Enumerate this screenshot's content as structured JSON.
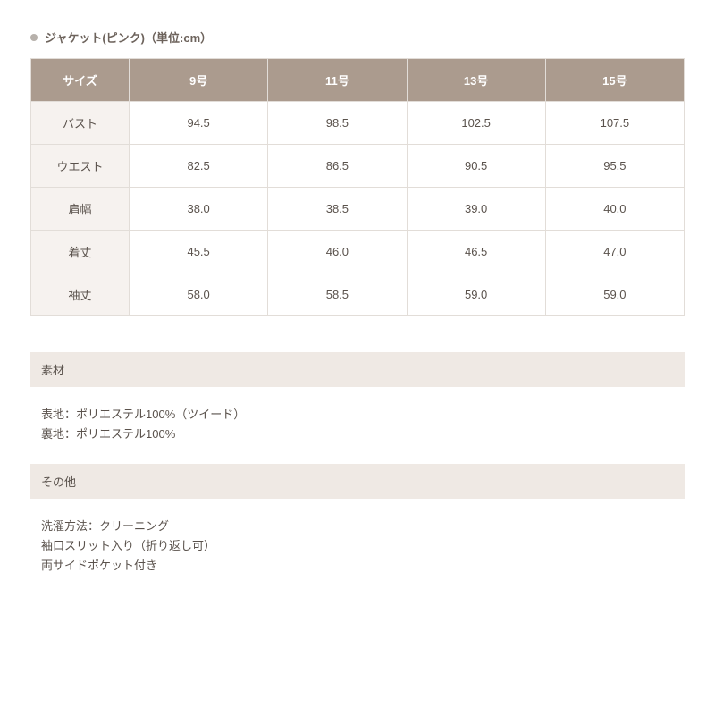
{
  "title": "ジャケット(ピンク)（単位:cm）",
  "table": {
    "header_first": "サイズ",
    "columns": [
      "9号",
      "11号",
      "13号",
      "15号"
    ],
    "rows": [
      {
        "label": "バスト",
        "values": [
          "94.5",
          "98.5",
          "102.5",
          "107.5"
        ]
      },
      {
        "label": "ウエスト",
        "values": [
          "82.5",
          "86.5",
          "90.5",
          "95.5"
        ]
      },
      {
        "label": "肩幅",
        "values": [
          "38.0",
          "38.5",
          "39.0",
          "40.0"
        ]
      },
      {
        "label": "着丈",
        "values": [
          "45.5",
          "46.0",
          "46.5",
          "47.0"
        ]
      },
      {
        "label": "袖丈",
        "values": [
          "58.0",
          "58.5",
          "59.0",
          "59.0"
        ]
      }
    ]
  },
  "sections": [
    {
      "heading": "素材",
      "lines": [
        "表地：ポリエステル100%（ツイード）",
        "裏地：ポリエステル100%"
      ]
    },
    {
      "heading": "その他",
      "lines": [
        "洗濯方法：クリーニング",
        "袖口スリット入り（折り返し可）",
        "両サイドポケット付き"
      ]
    }
  ],
  "colors": {
    "header_bg": "#ab9b8e",
    "header_fg": "#ffffff",
    "row_label_bg": "#f6f2ef",
    "cell_border": "#e2ddd8",
    "section_head_bg": "#efe9e4",
    "bullet": "#b7b1ab",
    "text": "#5a524c"
  }
}
